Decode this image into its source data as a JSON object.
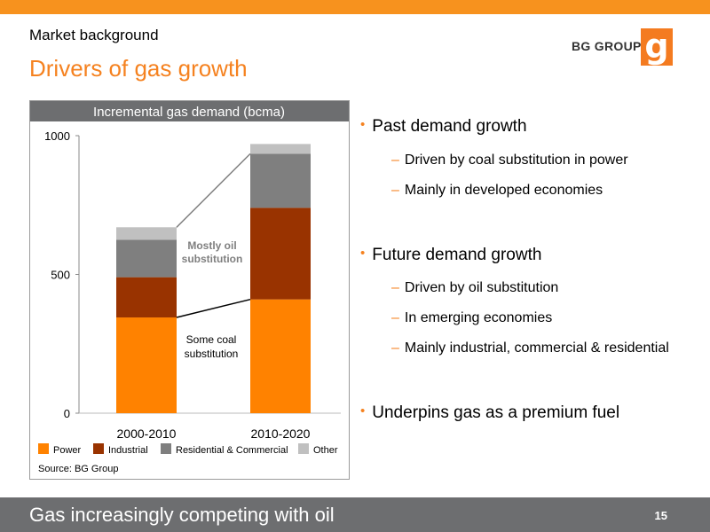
{
  "header": {
    "section": "Market background",
    "title": "Drivers of gas growth",
    "brand": "BG GROUP",
    "logo_glyph": "g"
  },
  "chart_data": {
    "type": "bar",
    "stacked": true,
    "title": "Incremental gas demand (bcma)",
    "categories": [
      "2000-2010",
      "2010-2020"
    ],
    "series": [
      {
        "name": "Power",
        "values": [
          345,
          410
        ],
        "color": "#ff8200"
      },
      {
        "name": "Industrial",
        "values": [
          145,
          330
        ],
        "color": "#993300"
      },
      {
        "name": "Residential & Commercial",
        "values": [
          135,
          195
        ],
        "color": "#7f7f7f"
      },
      {
        "name": "Other",
        "values": [
          45,
          35
        ],
        "color": "#c0c0c0"
      }
    ],
    "ylim": [
      0,
      1000
    ],
    "yticks": [
      0,
      500,
      1000
    ],
    "annotations": [
      {
        "text": "Mostly oil substitution"
      },
      {
        "text": "Some coal substitution"
      }
    ],
    "source": "Source: BG Group",
    "legend_position": "bottom"
  },
  "bullets": [
    {
      "text": "Past demand growth",
      "sub": [
        "Driven by coal substitution in power",
        "Mainly in developed economies"
      ]
    },
    {
      "text": "Future demand growth",
      "sub": [
        "Driven by oil substitution",
        "In emerging economies",
        "Mainly industrial, commercial & residential"
      ]
    },
    {
      "text": "Underpins gas as a premium fuel",
      "sub": []
    }
  ],
  "footer": {
    "text": "Gas increasingly competing with oil",
    "page_number": "15"
  },
  "colors": {
    "accent": "#f58220",
    "topbar": "#f7921e",
    "footer_bg": "#6d6e70",
    "chart_header_bg": "#6d6e70"
  }
}
